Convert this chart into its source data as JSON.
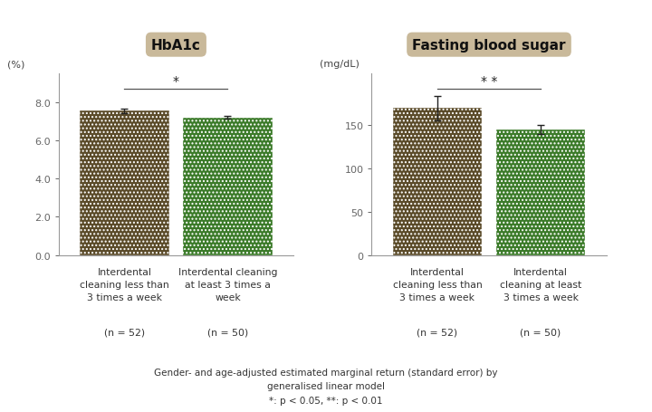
{
  "hba1c": {
    "title": "HbA1c",
    "ylabel": "(%)",
    "ylim": [
      0,
      9.5
    ],
    "yticks": [
      0.0,
      2.0,
      4.0,
      6.0,
      8.0
    ],
    "bar1_value": 7.55,
    "bar1_err": 0.12,
    "bar2_value": 7.2,
    "bar2_err": 0.07,
    "sig_label": "*",
    "title_bg": "#c9b99a"
  },
  "fbs": {
    "title": "Fasting blood sugar",
    "ylabel": "(mg/dL)",
    "ylim": [
      0,
      210
    ],
    "yticks": [
      0,
      50,
      100,
      150
    ],
    "bar1_value": 170,
    "bar1_err": 14,
    "bar2_value": 145,
    "bar2_err": 5,
    "sig_label": "* *",
    "title_bg": "#c9b99a"
  },
  "bar1_color": "#5a4a28",
  "bar2_color": "#3a7a28",
  "bar1_label1": "Interdental\ncleaning less than\n3 times a week",
  "bar1_label2": "(n = 52)",
  "bar2_label1_hba1c": "Interdental cleaning\nat least 3 times a\nweek",
  "bar2_label1_fbs": "Interdental\ncleaning at least\n3 times a week",
  "bar2_label2": "(n = 50)",
  "footer_line1": "Gender- and age-adjusted estimated marginal return (standard error) by",
  "footer_line2": "generalised linear model",
  "footer_line3": "*: p < 0.05, **: p < 0.01",
  "bg_color": "#ffffff",
  "text_color": "#444444"
}
